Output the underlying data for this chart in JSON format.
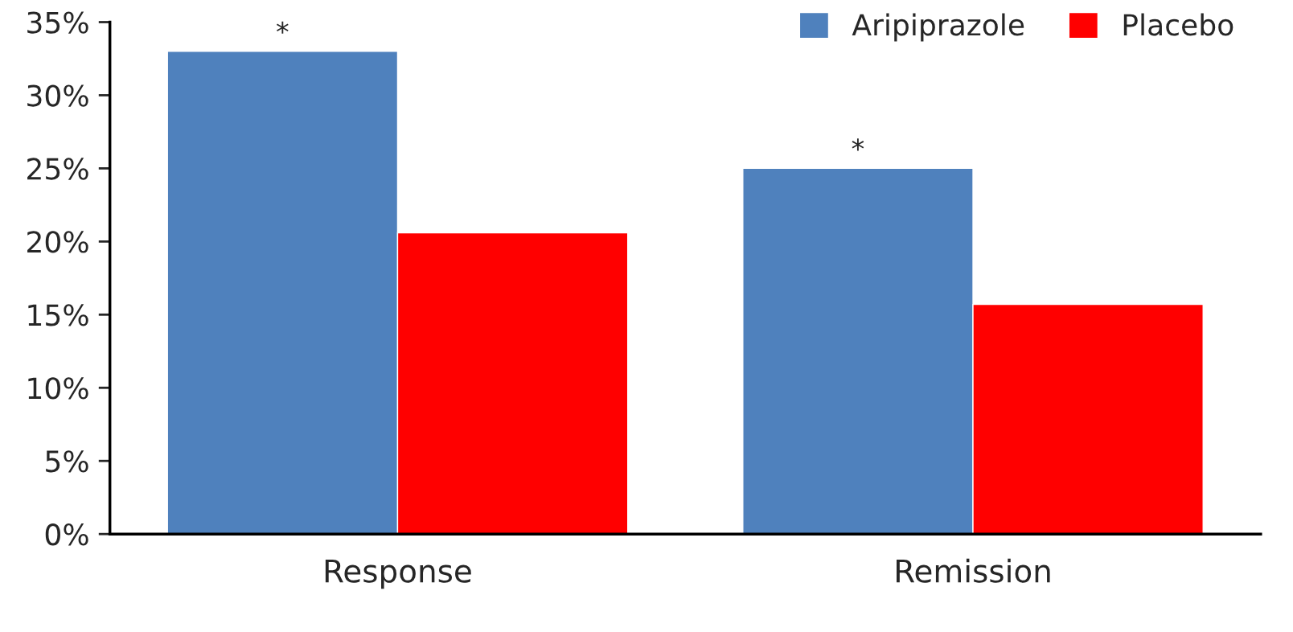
{
  "chart_data": {
    "type": "bar",
    "categories": [
      "Response",
      "Remission"
    ],
    "series": [
      {
        "name": "Aripiprazole",
        "color": "#4f81bd",
        "values": [
          33,
          25
        ]
      },
      {
        "name": "Placebo",
        "color": "#ff0000",
        "values": [
          20.6,
          15.7
        ]
      }
    ],
    "ylim": [
      0,
      35
    ],
    "yticks": [
      {
        "value": 0,
        "label": "0%"
      },
      {
        "value": 5,
        "label": "5%"
      },
      {
        "value": 10,
        "label": "10%"
      },
      {
        "value": 15,
        "label": "15%"
      },
      {
        "value": 20,
        "label": "20%"
      },
      {
        "value": 25,
        "label": "25%"
      },
      {
        "value": 30,
        "label": "30%"
      },
      {
        "value": 35,
        "label": "35%"
      }
    ],
    "annotations": [
      "*",
      "*"
    ],
    "legend": "top right",
    "grid": false
  }
}
